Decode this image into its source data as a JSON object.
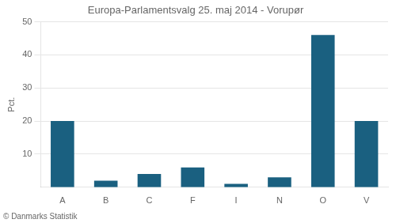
{
  "chart_data": {
    "type": "bar",
    "title": "Europa-Parlamentsvalg 25. maj 2014 - Vorupør",
    "ylabel": "Pct.",
    "footer": "© Danmarks Statistik",
    "categories": [
      "A",
      "B",
      "C",
      "F",
      "I",
      "N",
      "O",
      "V"
    ],
    "values": [
      20,
      2,
      4,
      6,
      1,
      3,
      46,
      20
    ],
    "color": "#1a6080",
    "ylim": [
      0,
      50
    ],
    "yticks": [
      10,
      20,
      30,
      40,
      50
    ],
    "grid": true
  }
}
